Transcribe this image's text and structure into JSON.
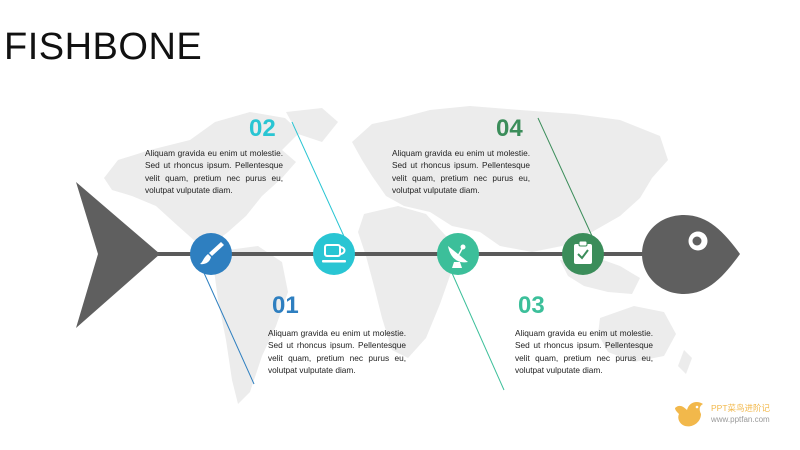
{
  "title": "FISHBONE",
  "colors": {
    "spine": "#5a5a5a",
    "fish": "#5f5f5f",
    "map": "#ececec",
    "node1": "#2e7fc0",
    "node2": "#29c5d3",
    "node3": "#3cbf9a",
    "node4": "#3b8d5a"
  },
  "items": [
    {
      "number": "01",
      "icon": "paintbrush-icon",
      "text": "Aliquam gravida eu enim ut molestie. Sed ut rhoncus ipsum. Pellentesque velit quam, pretium nec purus eu, volutpat vulputate diam."
    },
    {
      "number": "02",
      "icon": "coffee-cup-icon",
      "text": "Aliquam gravida eu enim ut molestie. Sed ut rhoncus ipsum. Pellentesque velit quam, pretium nec purus eu, volutpat vulputate diam."
    },
    {
      "number": "03",
      "icon": "satellite-dish-icon",
      "text": "Aliquam gravida eu enim ut molestie. Sed ut rhoncus ipsum. Pellentesque velit quam, pretium nec purus eu, volutpat vulputate diam."
    },
    {
      "number": "04",
      "icon": "clipboard-check-icon",
      "text": "Aliquam gravida eu enim ut molestie. Sed ut rhoncus ipsum. Pellentesque velit quam, pretium nec purus eu, volutpat vulputate diam."
    }
  ],
  "watermark": {
    "name": "PPT菜鸟进阶记",
    "url": "www.pptfan.com"
  }
}
